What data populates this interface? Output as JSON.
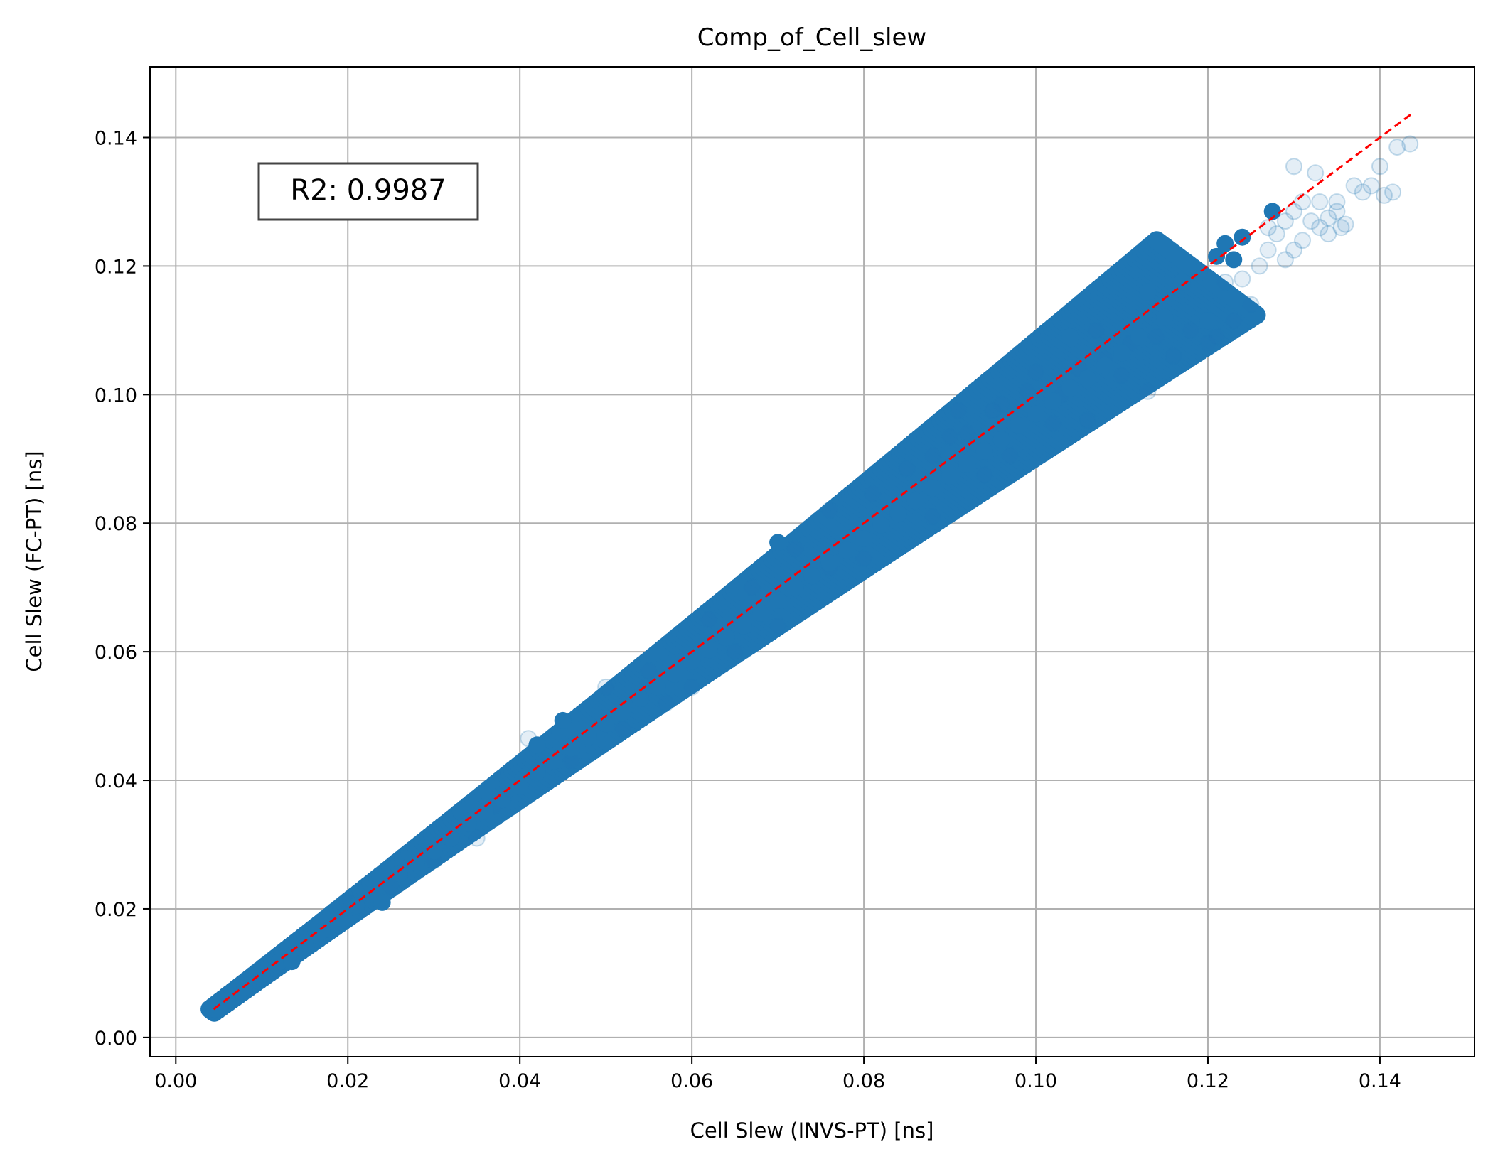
{
  "chart_data": {
    "type": "scatter",
    "title": "Comp_of_Cell_slew",
    "xlabel": "Cell Slew (INVS-PT) [ns]",
    "ylabel": "Cell Slew (FC-PT) [ns]",
    "xlim": [
      -0.003,
      0.151
    ],
    "ylim": [
      -0.003,
      0.151
    ],
    "xticks": [
      "0.00",
      "0.02",
      "0.04",
      "0.06",
      "0.08",
      "0.10",
      "0.12",
      "0.14"
    ],
    "yticks": [
      "0.00",
      "0.02",
      "0.04",
      "0.06",
      "0.08",
      "0.10",
      "0.12",
      "0.14"
    ],
    "tick_values": [
      0,
      0.02,
      0.04,
      0.06,
      0.08,
      0.1,
      0.12,
      0.14
    ],
    "grid": true,
    "annotation": "R2: 0.9987",
    "reference_line": {
      "x": [
        0.0044,
        0.1436
      ],
      "y": [
        0.0044,
        0.1436
      ],
      "color": "#ff0000",
      "style": "dashed"
    },
    "point_color": "#1f77b4",
    "series": [
      {
        "points": [
          [
            0.0045,
            0.0044
          ],
          [
            0.006,
            0.0058
          ],
          [
            0.008,
            0.0078
          ],
          [
            0.01,
            0.0098
          ],
          [
            0.012,
            0.0117
          ],
          [
            0.0135,
            0.0118
          ],
          [
            0.015,
            0.0147
          ],
          [
            0.017,
            0.0166
          ],
          [
            0.019,
            0.0186
          ],
          [
            0.021,
            0.0205
          ],
          [
            0.023,
            0.0222
          ],
          [
            0.024,
            0.021
          ],
          [
            0.026,
            0.0255
          ],
          [
            0.028,
            0.0272
          ],
          [
            0.03,
            0.029
          ],
          [
            0.032,
            0.031
          ],
          [
            0.034,
            0.0333
          ],
          [
            0.036,
            0.0352
          ],
          [
            0.038,
            0.037
          ],
          [
            0.04,
            0.039
          ],
          [
            0.042,
            0.0412
          ],
          [
            0.042,
            0.0455
          ],
          [
            0.044,
            0.043
          ],
          [
            0.045,
            0.0493
          ],
          [
            0.046,
            0.045
          ],
          [
            0.048,
            0.0468
          ],
          [
            0.05,
            0.0488
          ],
          [
            0.052,
            0.0506
          ],
          [
            0.054,
            0.0527
          ],
          [
            0.056,
            0.0545
          ],
          [
            0.058,
            0.0565
          ],
          [
            0.06,
            0.0585
          ],
          [
            0.062,
            0.0603
          ],
          [
            0.064,
            0.0622
          ],
          [
            0.066,
            0.064
          ],
          [
            0.068,
            0.066
          ],
          [
            0.07,
            0.077
          ],
          [
            0.07,
            0.068
          ],
          [
            0.072,
            0.07
          ],
          [
            0.074,
            0.0718
          ],
          [
            0.076,
            0.0738
          ],
          [
            0.078,
            0.0758
          ],
          [
            0.08,
            0.0776
          ],
          [
            0.082,
            0.0797
          ],
          [
            0.084,
            0.0815
          ],
          [
            0.086,
            0.0835
          ],
          [
            0.088,
            0.0855
          ],
          [
            0.09,
            0.0873
          ],
          [
            0.092,
            0.0892
          ],
          [
            0.094,
            0.0912
          ],
          [
            0.096,
            0.093
          ],
          [
            0.098,
            0.0952
          ],
          [
            0.1,
            0.097
          ],
          [
            0.102,
            0.099
          ],
          [
            0.104,
            0.109
          ],
          [
            0.104,
            0.101
          ],
          [
            0.106,
            0.1025
          ],
          [
            0.108,
            0.1045
          ],
          [
            0.11,
            0.1065
          ],
          [
            0.112,
            0.109
          ],
          [
            0.113,
            0.116
          ],
          [
            0.115,
            0.112
          ],
          [
            0.117,
            0.1175
          ],
          [
            0.119,
            0.119
          ],
          [
            0.12,
            0.1115
          ],
          [
            0.121,
            0.1215
          ],
          [
            0.122,
            0.1235
          ],
          [
            0.123,
            0.121
          ],
          [
            0.124,
            0.1245
          ],
          [
            0.1275,
            0.1285
          ]
        ]
      },
      {
        "points": [
          [
            0.088,
            0.0905
          ],
          [
            0.085,
            0.0885
          ],
          [
            0.092,
            0.094
          ],
          [
            0.09,
            0.0935
          ],
          [
            0.095,
            0.0975
          ],
          [
            0.099,
            0.1005
          ],
          [
            0.1,
            0.1035
          ],
          [
            0.105,
            0.104
          ],
          [
            0.11,
            0.103
          ],
          [
            0.113,
            0.1005
          ],
          [
            0.103,
            0.1
          ],
          [
            0.102,
            0.0955
          ],
          [
            0.106,
            0.096
          ],
          [
            0.097,
            0.0905
          ],
          [
            0.094,
            0.0875
          ],
          [
            0.088,
            0.081
          ],
          [
            0.08,
            0.0745
          ],
          [
            0.076,
            0.073
          ],
          [
            0.07,
            0.064
          ],
          [
            0.065,
            0.06
          ],
          [
            0.06,
            0.0545
          ],
          [
            0.057,
            0.052
          ],
          [
            0.052,
            0.048
          ],
          [
            0.046,
            0.043
          ],
          [
            0.041,
            0.0465
          ],
          [
            0.037,
            0.036
          ],
          [
            0.035,
            0.031
          ],
          [
            0.03,
            0.0275
          ],
          [
            0.025,
            0.0235
          ],
          [
            0.02,
            0.021
          ],
          [
            0.05,
            0.0545
          ],
          [
            0.055,
            0.057
          ],
          [
            0.062,
            0.065
          ],
          [
            0.067,
            0.07
          ],
          [
            0.072,
            0.076
          ],
          [
            0.076,
            0.082
          ],
          [
            0.081,
            0.0845
          ],
          [
            0.091,
            0.0975
          ],
          [
            0.096,
            0.0985
          ],
          [
            0.107,
            0.11
          ],
          [
            0.108,
            0.1055
          ],
          [
            0.111,
            0.108
          ],
          [
            0.114,
            0.109
          ],
          [
            0.116,
            0.106
          ],
          [
            0.118,
            0.11
          ],
          [
            0.12,
            0.108
          ],
          [
            0.121,
            0.109
          ],
          [
            0.123,
            0.1115
          ],
          [
            0.125,
            0.114
          ],
          [
            0.122,
            0.1175
          ],
          [
            0.124,
            0.118
          ],
          [
            0.126,
            0.12
          ],
          [
            0.127,
            0.1225
          ],
          [
            0.128,
            0.125
          ],
          [
            0.129,
            0.121
          ],
          [
            0.13,
            0.1225
          ],
          [
            0.131,
            0.124
          ],
          [
            0.132,
            0.127
          ],
          [
            0.133,
            0.126
          ],
          [
            0.134,
            0.1275
          ],
          [
            0.13,
            0.1355
          ],
          [
            0.131,
            0.13
          ],
          [
            0.1325,
            0.1345
          ],
          [
            0.133,
            0.13
          ],
          [
            0.135,
            0.13
          ],
          [
            0.1355,
            0.126
          ],
          [
            0.137,
            0.1325
          ],
          [
            0.138,
            0.1315
          ],
          [
            0.139,
            0.1325
          ],
          [
            0.14,
            0.1355
          ],
          [
            0.1405,
            0.131
          ],
          [
            0.1415,
            0.1315
          ],
          [
            0.142,
            0.1385
          ],
          [
            0.1435,
            0.139
          ],
          [
            0.136,
            0.1265
          ],
          [
            0.13,
            0.1285
          ],
          [
            0.127,
            0.126
          ],
          [
            0.129,
            0.127
          ],
          [
            0.135,
            0.1285
          ],
          [
            0.134,
            0.125
          ]
        ]
      }
    ]
  }
}
